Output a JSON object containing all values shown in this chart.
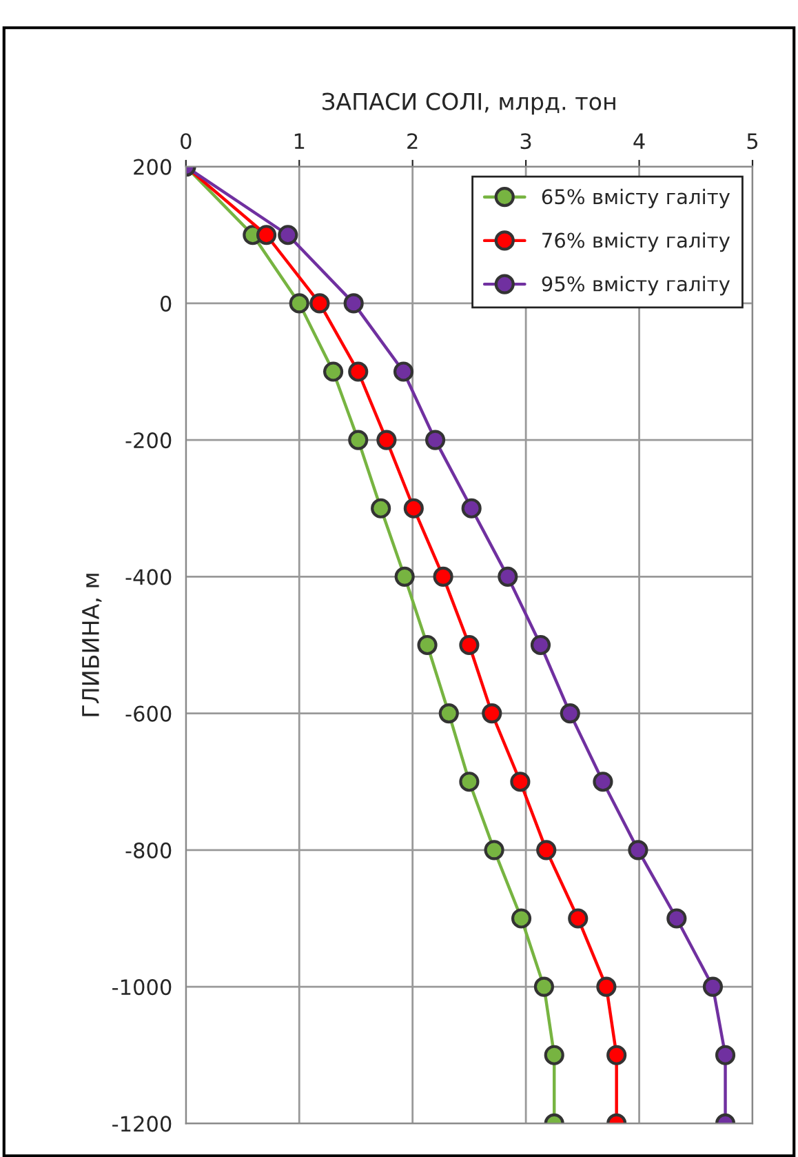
{
  "chart_data": {
    "type": "line",
    "xlabel": "ЗАПАСИ СОЛІ, млрд. тон",
    "ylabel": "ГЛИБИНА, м",
    "orientation": "horizontal",
    "x": [
      200,
      100,
      0,
      -100,
      -200,
      -300,
      -400,
      -500,
      -600,
      -700,
      -800,
      -900,
      -1000,
      -1100,
      -1200
    ],
    "series": [
      {
        "name": "65% вмісту галіту",
        "color": "#77b441",
        "values": [
          0,
          0.59,
          1.0,
          1.3,
          1.52,
          1.72,
          1.93,
          2.13,
          2.32,
          2.5,
          2.72,
          2.96,
          3.16,
          3.25,
          3.25
        ]
      },
      {
        "name": "76% вмісту галіту",
        "color": "#ff0000",
        "values": [
          0,
          0.71,
          1.18,
          1.52,
          1.77,
          2.01,
          2.27,
          2.5,
          2.7,
          2.95,
          3.18,
          3.46,
          3.71,
          3.8,
          3.8
        ]
      },
      {
        "name": "95% вмісту галіту",
        "color": "#7030a0",
        "values": [
          0,
          0.9,
          1.48,
          1.92,
          2.2,
          2.52,
          2.84,
          3.13,
          3.39,
          3.68,
          3.99,
          4.33,
          4.65,
          4.76,
          4.76
        ]
      }
    ],
    "xlim": [
      0,
      5
    ],
    "xticks": [
      0,
      1,
      2,
      3,
      4,
      5
    ],
    "ylim": [
      -1200,
      200
    ],
    "yticks": [
      -1200,
      -1000,
      -800,
      -600,
      -400,
      -200,
      0,
      200
    ],
    "grid": true,
    "legend": "top right",
    "marker": "circle",
    "line_style": "solid"
  }
}
